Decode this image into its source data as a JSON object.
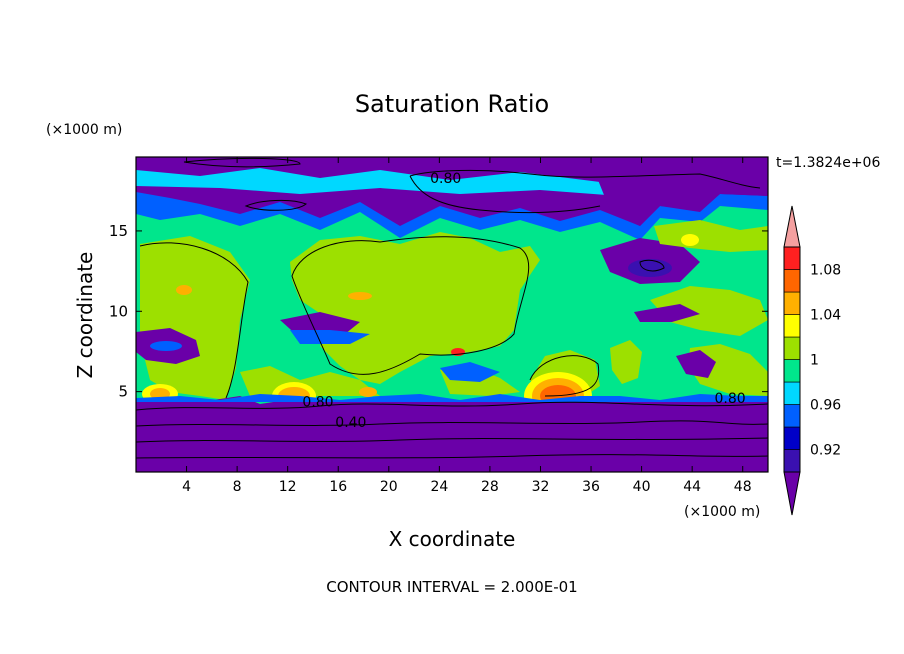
{
  "chart_data": {
    "type": "heatmap",
    "title": "Saturation Ratio",
    "xlabel": "X coordinate",
    "ylabel": "Z coordinate",
    "x_unit": "(×1000 m)",
    "y_unit": "(×1000 m)",
    "time_label": "t=1.3824e+06",
    "footer": "CONTOUR INTERVAL = 2.000E-01",
    "xlim": [
      0,
      50
    ],
    "ylim": [
      0,
      19.6
    ],
    "x_ticks": [
      4,
      8,
      12,
      16,
      20,
      24,
      28,
      32,
      36,
      40,
      44,
      48
    ],
    "y_ticks": [
      5,
      10,
      15
    ],
    "contour_labels": [
      {
        "text": "0.80",
        "x": 24.5,
        "y": 18.3
      },
      {
        "text": "0.80",
        "x": 14.4,
        "y": 4.4
      },
      {
        "text": "0.80",
        "x": 47.0,
        "y": 4.6
      },
      {
        "text": "0.40",
        "x": 17.0,
        "y": 3.1
      }
    ],
    "colorbar": {
      "levels": [
        "below 0.90",
        "0.90–0.92",
        "0.92–0.94",
        "0.94–0.96",
        "0.96–0.98",
        "0.98–1.00",
        "1.00–1.02",
        "1.02–1.04",
        "1.04–1.06",
        "1.06–1.08",
        "1.08–1.10",
        "above 1.10"
      ],
      "colors": [
        "#6a00a8",
        "#3a10b0",
        "#0000c8",
        "#0060ff",
        "#00d8ff",
        "#00e68c",
        "#9de000",
        "#ffff00",
        "#ffb000",
        "#ff6600",
        "#ff2020",
        "#f4a0a0"
      ],
      "tick_labels": [
        {
          "text": "0.92",
          "value": 0.92
        },
        {
          "text": "0.96",
          "value": 0.96
        },
        {
          "text": "1",
          "value": 1.0
        },
        {
          "text": "1.04",
          "value": 1.04
        },
        {
          "text": "1.08",
          "value": 1.08
        }
      ]
    },
    "colors": {
      "very_dry": "#6a00a8",
      "dry": "#3a10b0",
      "blue": "#0000c8",
      "mid_blue": "#0060ff",
      "cyan": "#00d8ff",
      "sea_green": "#00e68c",
      "lime": "#9de000",
      "yellow": "#ffff00",
      "orange": "#ffb000",
      "dark_orange": "#ff6600",
      "red": "#ff2020",
      "pink": "#f4a0a0"
    }
  }
}
